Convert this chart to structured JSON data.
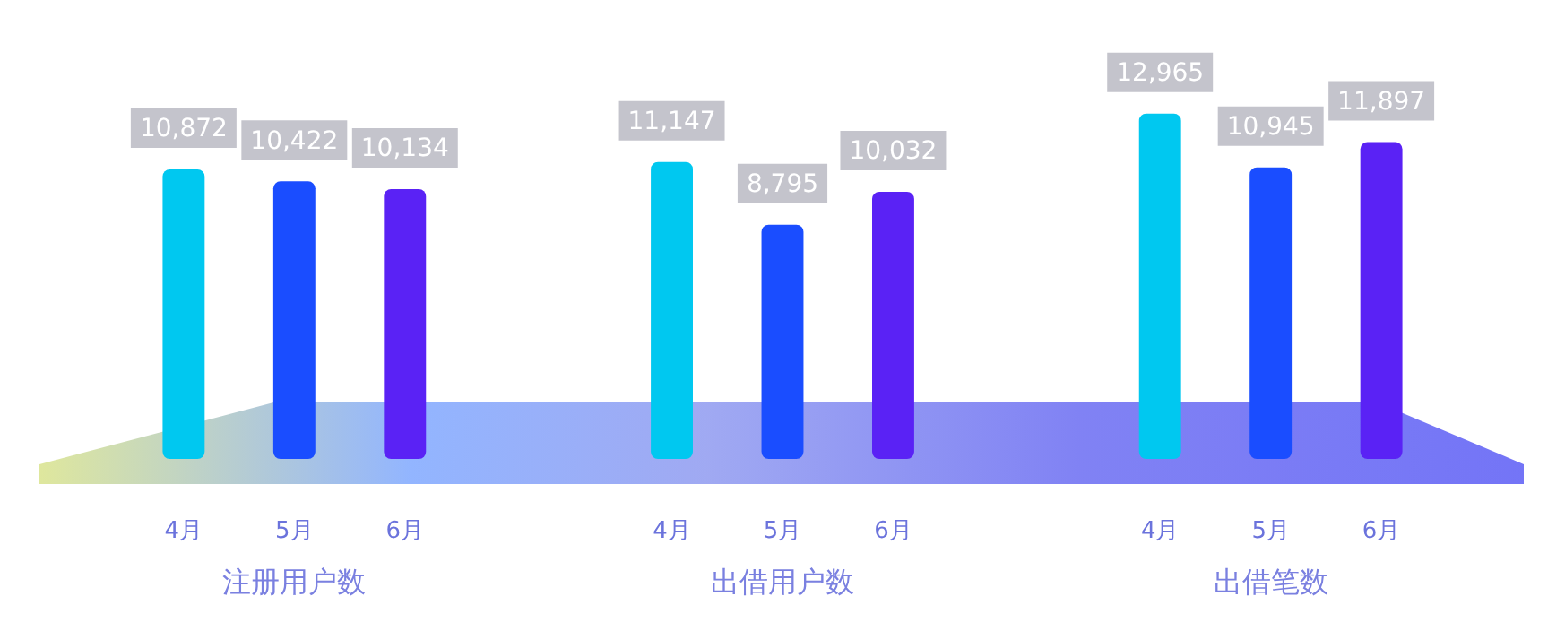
{
  "chart_data": {
    "type": "bar",
    "categories": [
      "注册用户数",
      "出借用户数",
      "出借笔数"
    ],
    "series": [
      {
        "name": "4月",
        "color": "#00c8f0",
        "values": [
          10872,
          11147,
          12965
        ],
        "value_labels": [
          "10,872",
          "11,147",
          "12,965"
        ]
      },
      {
        "name": "5月",
        "color": "#1a4dff",
        "values": [
          10422,
          8795,
          10945
        ],
        "value_labels": [
          "10,422",
          "8,795",
          "10,945"
        ]
      },
      {
        "name": "6月",
        "color": "#5a22f5",
        "values": [
          10134,
          10032,
          11897
        ],
        "value_labels": [
          "10,134",
          "10,032",
          "11,897"
        ]
      }
    ],
    "legend": false
  }
}
